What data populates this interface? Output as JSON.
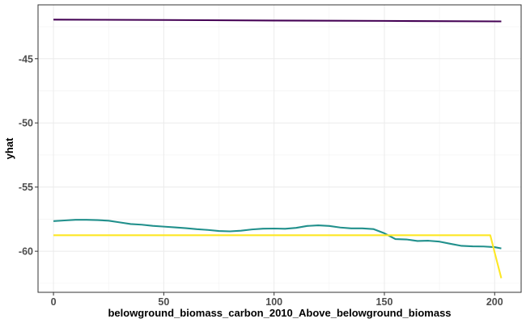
{
  "chart_data": {
    "type": "line",
    "title": "",
    "xlabel": "belowground_biomass_carbon_2010_Above_belowground_biomass",
    "ylabel": "yhat",
    "xlim": [
      -7,
      212
    ],
    "ylim": [
      -63.2,
      -40.8
    ],
    "x_ticks": [
      0,
      50,
      100,
      150,
      200
    ],
    "y_ticks": [
      -45,
      -50,
      -55,
      -60
    ],
    "x_tick_labels": [
      "0",
      "50",
      "100",
      "150",
      "200"
    ],
    "y_tick_labels": [
      "-45",
      "-50",
      "-55",
      "-60"
    ],
    "grid": true,
    "legend": "none",
    "series": [
      {
        "color": "#440154",
        "x": [
          0,
          50,
          100,
          150,
          203
        ],
        "y": [
          -41.95,
          -41.98,
          -42.02,
          -42.05,
          -42.09
        ]
      },
      {
        "color": "#21908C",
        "x": [
          0,
          5,
          10,
          15,
          20,
          25,
          30,
          35,
          40,
          45,
          50,
          55,
          60,
          65,
          70,
          75,
          80,
          85,
          90,
          95,
          100,
          105,
          110,
          115,
          120,
          125,
          130,
          135,
          140,
          145,
          150,
          155,
          160,
          165,
          170,
          175,
          180,
          185,
          190,
          195,
          200,
          203
        ],
        "y": [
          -57.65,
          -57.6,
          -57.55,
          -57.55,
          -57.57,
          -57.62,
          -57.75,
          -57.88,
          -57.93,
          -58.02,
          -58.08,
          -58.14,
          -58.2,
          -58.28,
          -58.34,
          -58.42,
          -58.45,
          -58.4,
          -58.3,
          -58.24,
          -58.23,
          -58.25,
          -58.18,
          -58.03,
          -57.98,
          -58.03,
          -58.15,
          -58.22,
          -58.22,
          -58.27,
          -58.6,
          -59.05,
          -59.08,
          -59.2,
          -59.18,
          -59.25,
          -59.42,
          -59.58,
          -59.62,
          -59.63,
          -59.68,
          -59.78
        ]
      },
      {
        "color": "#FDE725",
        "x": [
          0,
          50,
          100,
          150,
          198,
          200,
          203
        ],
        "y": [
          -58.75,
          -58.75,
          -58.75,
          -58.75,
          -58.75,
          -60.1,
          -62.1
        ]
      }
    ]
  }
}
